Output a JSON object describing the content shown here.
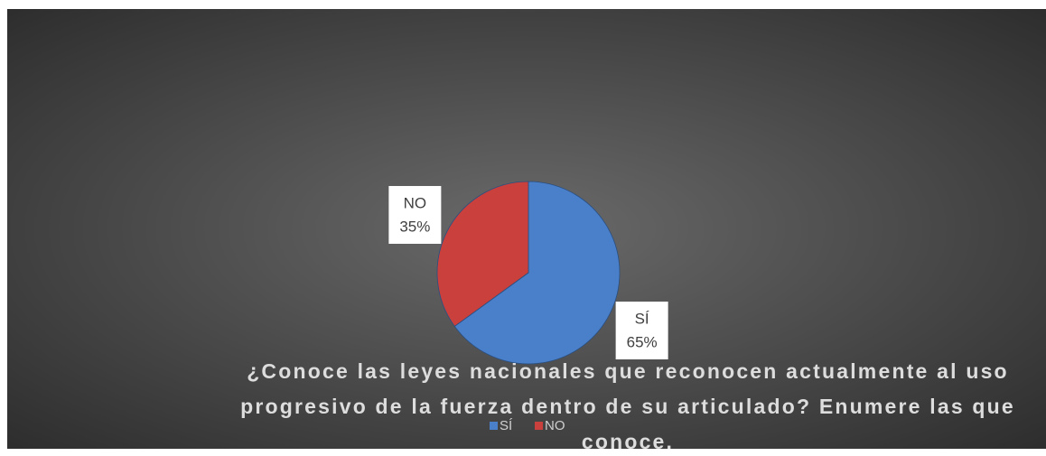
{
  "chart_data": {
    "type": "pie",
    "title": "¿Conoce las leyes nacionales que reconocen actualmente al uso progresivo de la fuerza dentro de su articulado? Enumere las que conoce.",
    "categories": [
      "SÍ",
      "NO"
    ],
    "values": [
      65,
      35
    ],
    "value_labels": [
      "65%",
      "35%"
    ],
    "colors": [
      "#4a7fc9",
      "#c9403d"
    ],
    "legend": "bottom"
  }
}
